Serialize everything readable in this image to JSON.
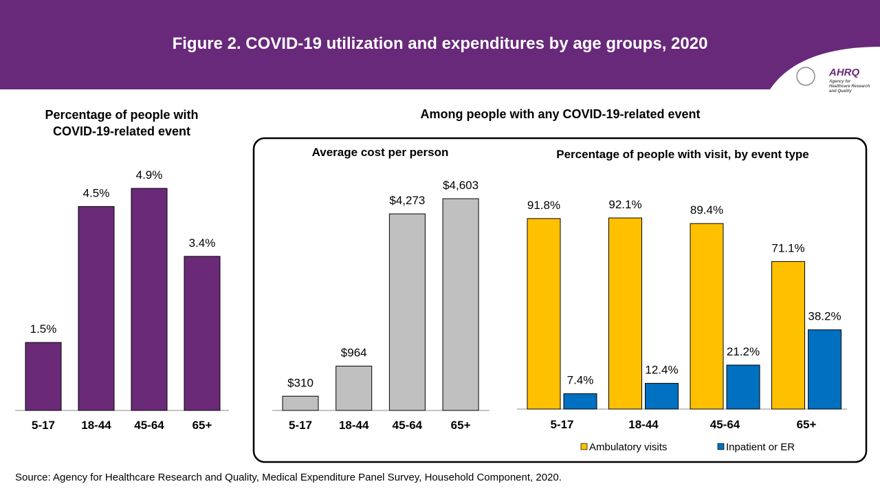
{
  "title": "Figure 2. COVID-19 utilization and expenditures by age groups, 2020",
  "logo": {
    "name": "AHRQ",
    "text": "Agency for Healthcare Research and Quality"
  },
  "heading": "Among people with any COVID-19-related event",
  "source": "Source: Agency for Healthcare Research and Quality, Medical Expenditure Panel Survey, Household Component, 2020.",
  "chart_data": [
    {
      "type": "bar",
      "title": "Percentage of people with COVID-19-related event",
      "categories": [
        "5-17",
        "18-44",
        "45-64",
        "65+"
      ],
      "values": [
        1.5,
        4.5,
        4.9,
        3.4
      ],
      "value_labels": [
        "1.5%",
        "4.5%",
        "4.9%",
        "3.4%"
      ],
      "color": "#6a2a78"
    },
    {
      "type": "bar",
      "title": "Average cost per person",
      "categories": [
        "5-17",
        "18-44",
        "45-64",
        "65+"
      ],
      "values": [
        310,
        964,
        4273,
        4603
      ],
      "value_labels": [
        "$310",
        "$964",
        "$4,273",
        "$4,603"
      ],
      "color": "#c0c0c0"
    },
    {
      "type": "grouped_bar",
      "title": "Percentage of people with visit, by event type",
      "categories": [
        "5-17",
        "18-44",
        "45-64",
        "65+"
      ],
      "series": [
        {
          "name": "Ambulatory visits",
          "color": "#ffc000",
          "values": [
            91.8,
            92.1,
            89.4,
            71.1
          ],
          "value_labels": [
            "91.8%",
            "92.1%",
            "89.4%",
            "71.1%"
          ]
        },
        {
          "name": "Inpatient or ER",
          "color": "#0070c0",
          "values": [
            7.4,
            12.4,
            21.2,
            38.2
          ],
          "value_labels": [
            "7.4%",
            "12.4%",
            "21.2%",
            "38.2%"
          ]
        }
      ],
      "legend": "bottom"
    }
  ]
}
